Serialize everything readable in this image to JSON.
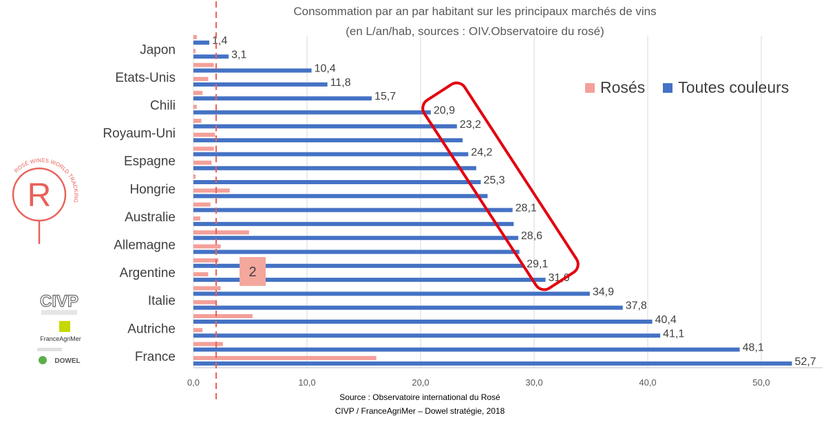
{
  "chart_data": {
    "type": "bar",
    "orientation": "horizontal",
    "title": "Consommation par an par habitant sur les principaux marchés de vins",
    "subtitle": "(en L/an/hab, sources : OIV.Observatoire du rosé)",
    "categories": [
      "Japon",
      "Etats-Unis",
      "Chili",
      "Royaum-Uni",
      "Espagne",
      "Hongrie",
      "Australie",
      "Allemagne",
      "Argentine",
      "Italie",
      "Autriche",
      "France"
    ],
    "rows": [
      {
        "label": "",
        "rose": 0.3,
        "total": 1.4,
        "value_label": "1,4"
      },
      {
        "label": "Japon",
        "rose": 0.2,
        "total": 3.1,
        "value_label": "3,1"
      },
      {
        "label": "",
        "rose": 1.8,
        "total": 10.4,
        "value_label": "10,4"
      },
      {
        "label": "Etats-Unis",
        "rose": 1.3,
        "total": 11.8,
        "value_label": "11,8"
      },
      {
        "label": "",
        "rose": 0.8,
        "total": 15.7,
        "value_label": "15,7"
      },
      {
        "label": "Chili",
        "rose": 0.3,
        "total": 20.9,
        "value_label": "20,9"
      },
      {
        "label": "",
        "rose": 0.7,
        "total": 23.2,
        "value_label": "23,2"
      },
      {
        "label": "Royaum-Uni",
        "rose": 1.9,
        "total": 23.7,
        "value_label": ""
      },
      {
        "label": "",
        "rose": 1.8,
        "total": 24.2,
        "value_label": "24,2"
      },
      {
        "label": "Espagne",
        "rose": 1.6,
        "total": 24.9,
        "value_label": ""
      },
      {
        "label": "",
        "rose": 0.2,
        "total": 25.3,
        "value_label": "25,3"
      },
      {
        "label": "Hongrie",
        "rose": 3.2,
        "total": 25.9,
        "value_label": ""
      },
      {
        "label": "",
        "rose": 1.5,
        "total": 28.1,
        "value_label": "28,1"
      },
      {
        "label": "Australie",
        "rose": 0.6,
        "total": 28.2,
        "value_label": ""
      },
      {
        "label": "",
        "rose": 4.9,
        "total": 28.6,
        "value_label": "28,6"
      },
      {
        "label": "Allemagne",
        "rose": 2.4,
        "total": 28.7,
        "value_label": ""
      },
      {
        "label": "",
        "rose": 2.2,
        "total": 29.1,
        "value_label": "29,1"
      },
      {
        "label": "Argentine",
        "rose": 1.3,
        "total": 31.0,
        "value_label": "31,0"
      },
      {
        "label": "",
        "rose": 2.4,
        "total": 34.9,
        "value_label": "34,9"
      },
      {
        "label": "Italie",
        "rose": 2.0,
        "total": 37.8,
        "value_label": "37,8"
      },
      {
        "label": "",
        "rose": 5.2,
        "total": 40.4,
        "value_label": "40,4"
      },
      {
        "label": "Autriche",
        "rose": 0.8,
        "total": 41.1,
        "value_label": "41,1"
      },
      {
        "label": "",
        "rose": 2.6,
        "total": 48.1,
        "value_label": "48,1"
      },
      {
        "label": "France",
        "rose": 16.1,
        "total": 52.7,
        "value_label": "52,7"
      }
    ],
    "series": [
      {
        "name": "Rosés",
        "color": "#F4A09A"
      },
      {
        "name": "Toutes couleurs",
        "color": "#4472C4"
      }
    ],
    "xlim": [
      0,
      53
    ],
    "x_ticks": [
      0,
      10,
      20,
      30,
      40,
      50
    ],
    "x_tick_labels": [
      "0,0",
      "10,0",
      "20,0",
      "30,0",
      "40,0",
      "50,0"
    ],
    "grid": true,
    "legend_position": "top-right",
    "reference_line": {
      "value": 2,
      "label": "2",
      "color": "#E8625A",
      "style": "dashed"
    },
    "annotation": "red rounded rectangle highlighting the 20,9 to 31,0 bars"
  },
  "footer": {
    "line1": "Source : Observatoire international du Rosé",
    "line2": "CIVP / FranceAgriMer – Dowel stratégie, 2018"
  },
  "logos": {
    "rose_logo_text": "ROSÉ WINES WORLD TRACKING",
    "rose_logo_letter": "R",
    "civp": "CIVP",
    "franceagrimer": "FranceAgriMer",
    "dowel": "DOWEL"
  },
  "colors": {
    "rose": "#F4A09A",
    "all_colors": "#4472C4",
    "highlight": "#E3000F",
    "grid": "#D9D9D9",
    "reference": "#E8625A"
  }
}
